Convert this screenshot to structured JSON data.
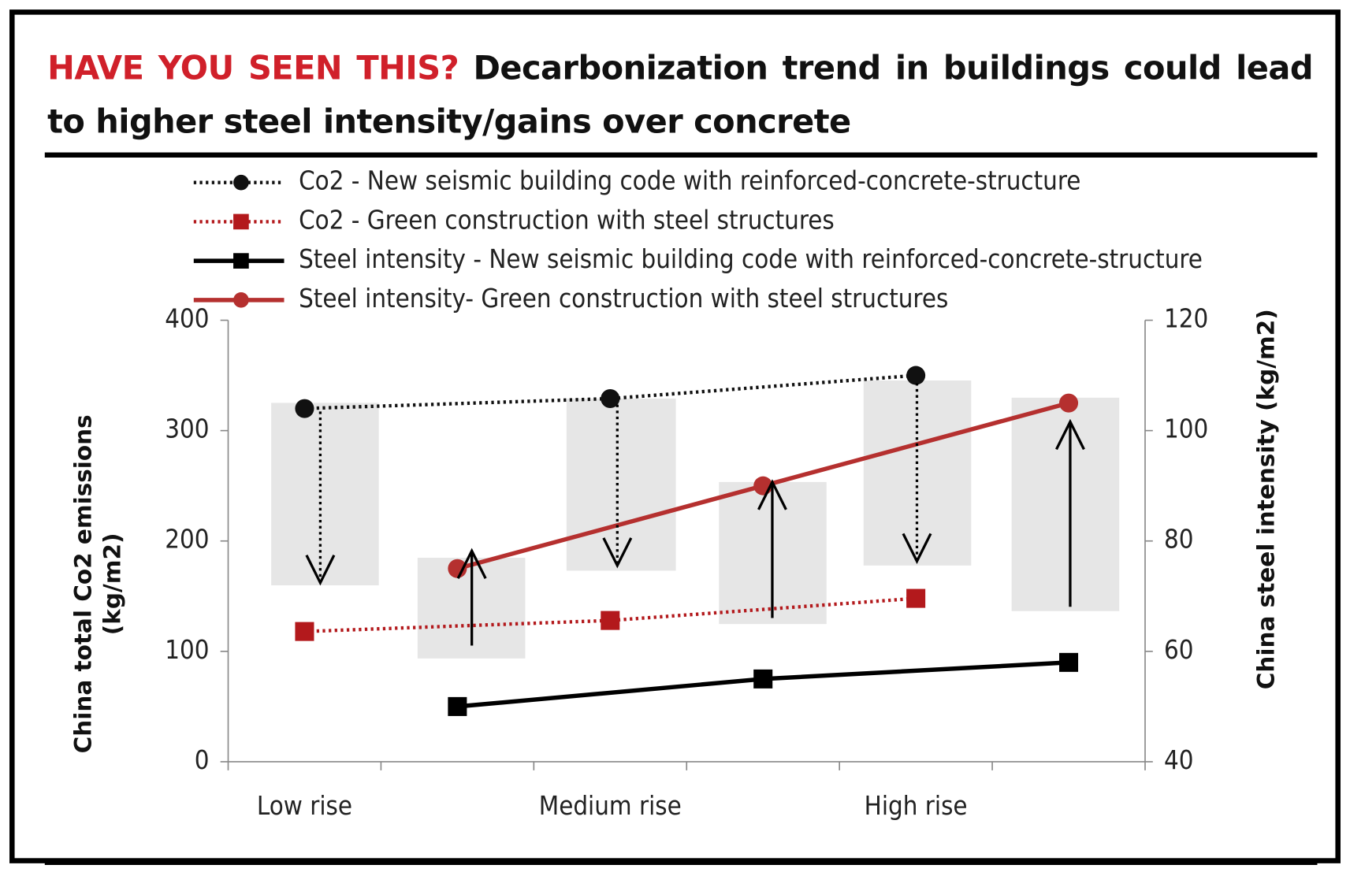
{
  "chart_data": {
    "type": "line",
    "title_prefix": "HAVE YOU SEEN THIS?",
    "title": "Decarbonization trend in buildings could lead to higher steel intensity/gains over concrete",
    "categories": [
      "Low rise",
      null,
      "Medium rise",
      null,
      "High rise",
      null
    ],
    "y_label": [
      "China total Co2 emissions",
      "(kg/m2)"
    ],
    "y2_label": "China steel intensity (kg/m2)",
    "ylim": [
      0,
      400
    ],
    "yticks": [
      0,
      100,
      200,
      300,
      400
    ],
    "y2lim": [
      40,
      120
    ],
    "y2ticks": [
      40,
      60,
      80,
      100,
      120
    ],
    "span_gaps": true,
    "series": [
      {
        "name": "Co2 - New seismic building code with reinforced-concrete-structure",
        "color": "#111111",
        "dashed": true,
        "marker": "circle",
        "axis": "y",
        "values": [
          320,
          null,
          329,
          null,
          350,
          null
        ]
      },
      {
        "name": "Co2 - Green construction with steel structures",
        "color": "#b3191c",
        "dashed": true,
        "marker": "square",
        "axis": "y",
        "values": [
          118,
          null,
          128,
          null,
          148,
          null
        ]
      },
      {
        "name": "Steel intensity - New seismic building code with reinforced-concrete-structure",
        "color": "#000000",
        "dashed": false,
        "marker": "square",
        "axis": "y2",
        "values": [
          null,
          50,
          null,
          55,
          null,
          58
        ]
      },
      {
        "name": "Steel intensity- Green construction with steel structures",
        "color": "#b5302f",
        "dashed": false,
        "marker": "circle",
        "axis": "y2",
        "values": [
          null,
          75,
          null,
          90,
          null,
          105
        ]
      }
    ]
  }
}
